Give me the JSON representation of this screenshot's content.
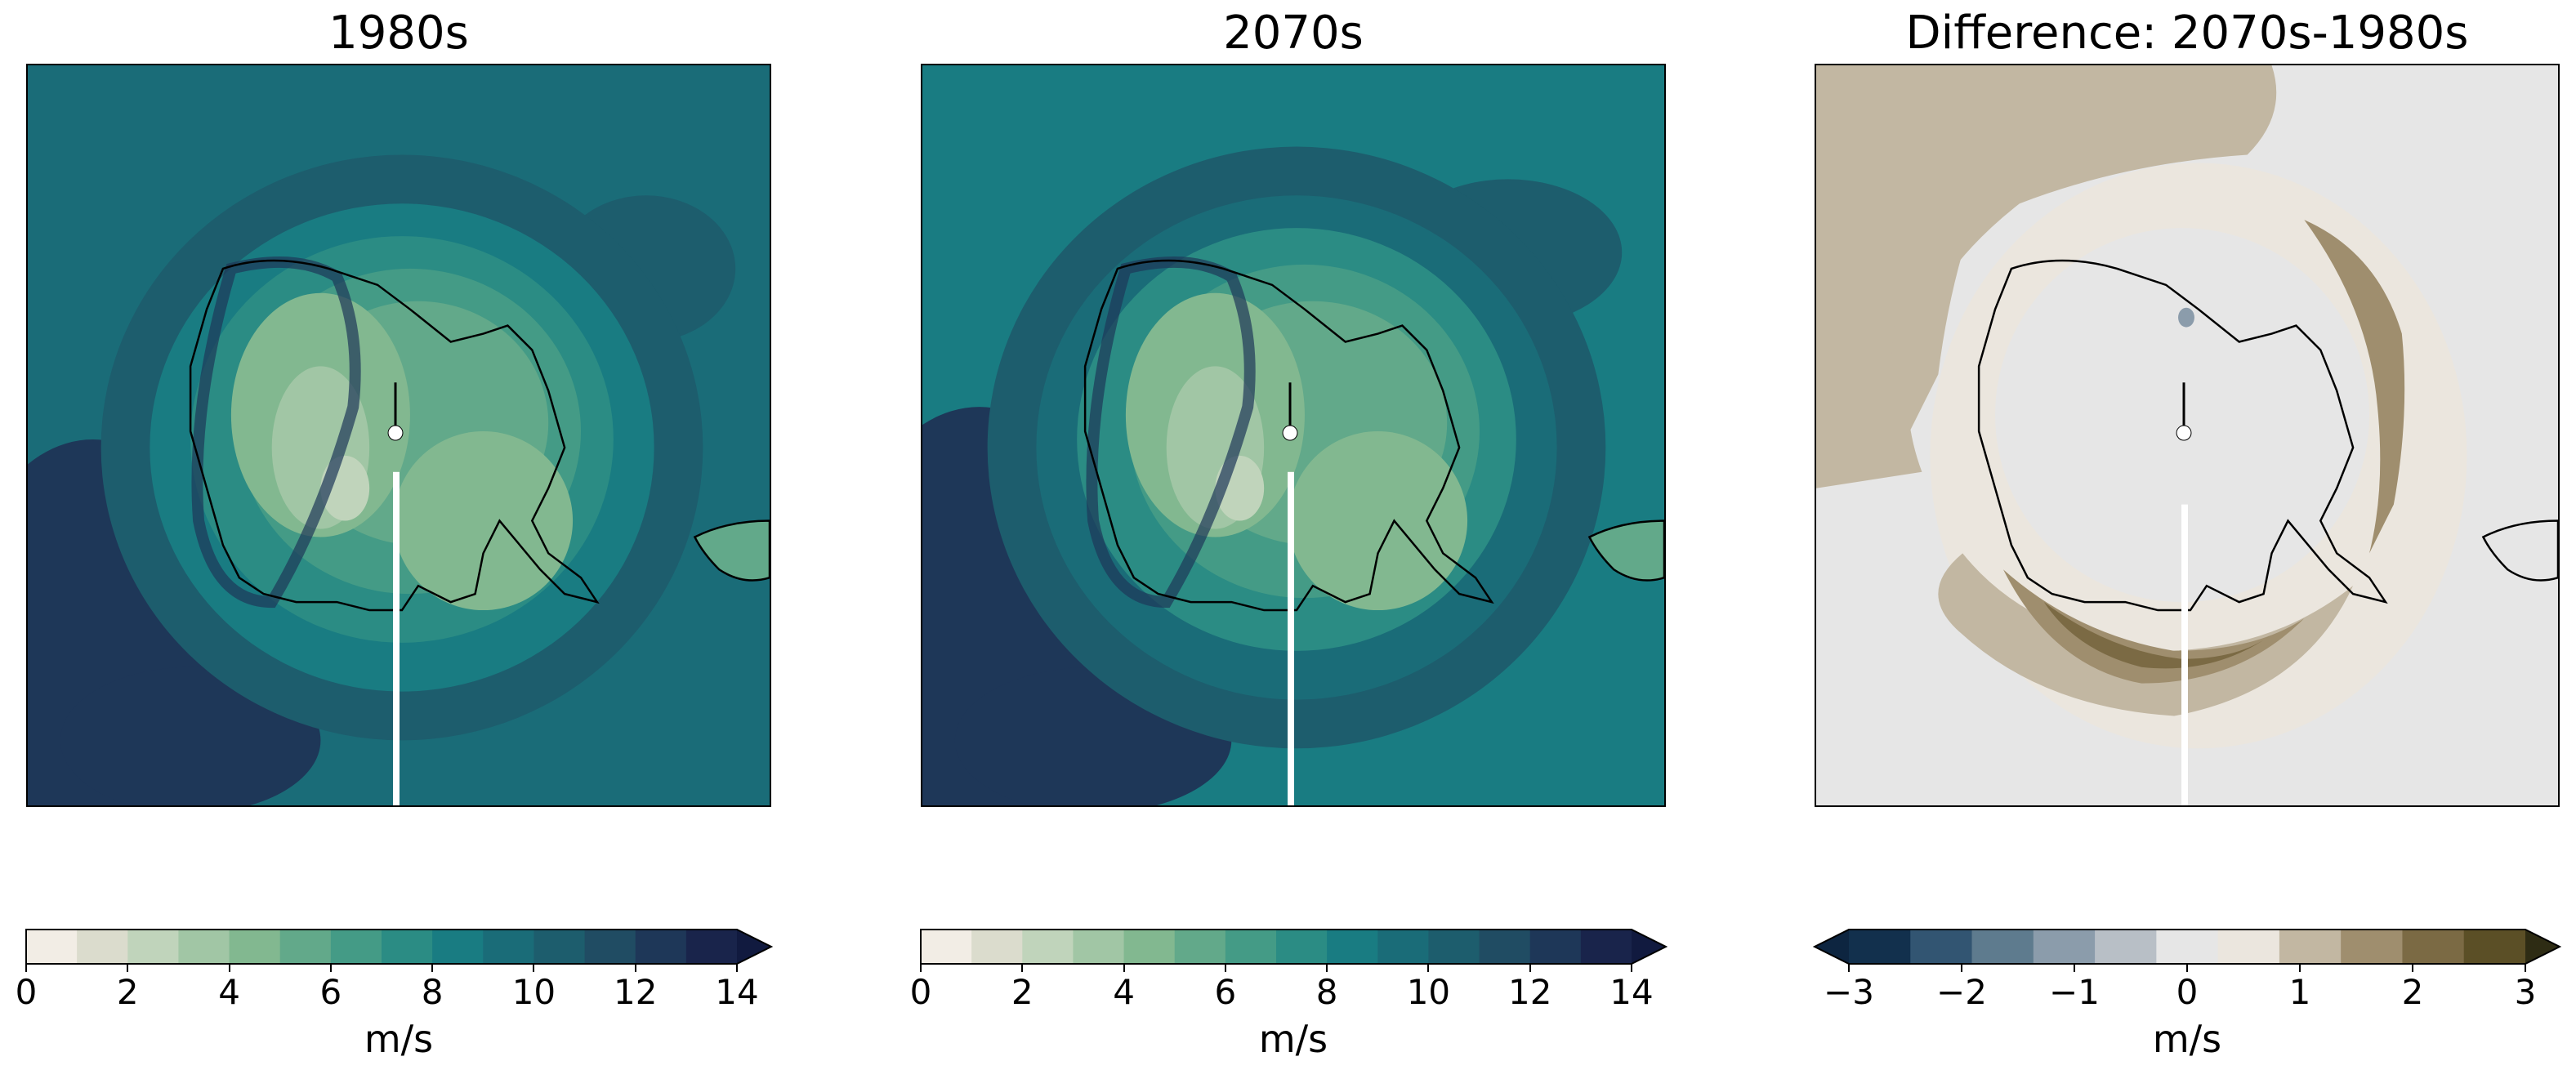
{
  "panels": [
    {
      "title": "1980s",
      "colorbar": {
        "unit": "m/s",
        "ticks": [
          "0",
          "2",
          "4",
          "6",
          "8",
          "10",
          "12",
          "14"
        ],
        "range": [
          0,
          14
        ],
        "levels": 14,
        "extend": "max",
        "colors": [
          "#f2ede5",
          "#dbdccd",
          "#c0d4bb",
          "#a1c6a5",
          "#82b890",
          "#62a98a",
          "#449b86",
          "#2b8c84",
          "#197c82",
          "#1a6c78",
          "#1d5d6d",
          "#204c63",
          "#1e3758",
          "#19244b",
          "#111a3f"
        ]
      }
    },
    {
      "title": "2070s",
      "colorbar": {
        "unit": "m/s",
        "ticks": [
          "0",
          "2",
          "4",
          "6",
          "8",
          "10",
          "12",
          "14"
        ],
        "range": [
          0,
          14
        ],
        "levels": 14,
        "extend": "max",
        "colors": [
          "#f2ede5",
          "#dbdccd",
          "#c0d4bb",
          "#a1c6a5",
          "#82b890",
          "#62a98a",
          "#449b86",
          "#2b8c84",
          "#197c82",
          "#1a6c78",
          "#1d5d6d",
          "#204c63",
          "#1e3758",
          "#19244b",
          "#111a3f"
        ]
      }
    },
    {
      "title": "Difference: 2070s-1980s",
      "colorbar": {
        "unit": "m/s",
        "ticks": [
          "−3",
          "−2",
          "−1",
          "0",
          "1",
          "2",
          "3"
        ],
        "range": [
          -3,
          3
        ],
        "levels": 11,
        "extend": "both",
        "colors": [
          "#0d2540",
          "#12304d",
          "#325572",
          "#5e7b8e",
          "#8b9cab",
          "#b8bfc6",
          "#e6e6e6",
          "#ebe6de",
          "#c2b7a2",
          "#9f8e6e",
          "#7b6a44",
          "#5b4f26",
          "#2e2c14",
          "#1f1e0c"
        ]
      }
    }
  ]
}
